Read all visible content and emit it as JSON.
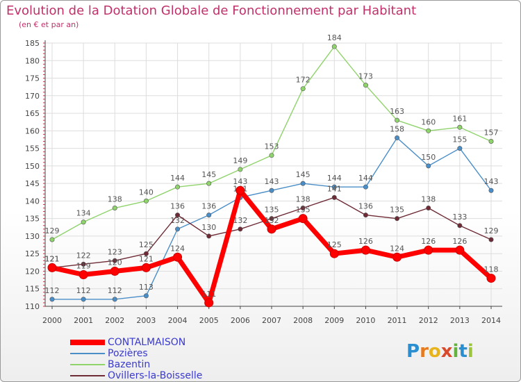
{
  "title": "Evolution de la Dotation Globale de Fonctionnement par Habitant",
  "subtitle": "(en € et par an)",
  "logo": {
    "letters": [
      "P",
      "r",
      "o",
      "x",
      "i",
      "t",
      "i"
    ],
    "colors": [
      "#2a8fd0",
      "#e87a1e",
      "#e8b41e",
      "#d94a2b",
      "#63b33e",
      "#2a8fd0",
      "#9bc43a"
    ]
  },
  "chart_data": {
    "type": "line",
    "x": [
      "2000",
      "2001",
      "2002",
      "2003",
      "2004",
      "2005",
      "2006",
      "2007",
      "2008",
      "2009",
      "2010",
      "2011",
      "2012",
      "2013",
      "2014"
    ],
    "ylim": [
      110,
      185
    ],
    "yticks": [
      "110",
      "115",
      "120",
      "125",
      "130",
      "135",
      "140",
      "145",
      "150",
      "155",
      "160",
      "165",
      "170",
      "175",
      "180",
      "185"
    ],
    "grid": true,
    "legend_position": "bottom-left",
    "series": [
      {
        "name": "Bazentin",
        "color": "#8fd36b",
        "values": [
          129,
          134,
          138,
          140,
          144,
          145,
          149,
          153,
          172,
          184,
          173,
          163,
          160,
          161,
          157
        ],
        "labels": [
          "129",
          "134",
          "138",
          "140",
          "144",
          "145",
          "149",
          "153",
          "172",
          "184",
          "173",
          "163",
          "160",
          "161",
          "157"
        ]
      },
      {
        "name": "Pozières",
        "color": "#4a8ec8",
        "values": [
          112,
          112,
          112,
          113,
          132,
          136,
          141,
          143,
          145,
          144,
          144,
          158,
          150,
          155,
          143
        ],
        "labels": [
          "112",
          "112",
          "112",
          "113",
          "132",
          "136",
          "141",
          "143",
          "145",
          "144",
          "144",
          "158",
          "150",
          "155",
          "143"
        ]
      },
      {
        "name": "Ovillers-la-Boisselle",
        "color": "#6e2a35",
        "values": [
          121,
          122,
          123,
          125,
          136,
          130,
          132,
          135,
          138,
          141,
          136,
          135,
          138,
          133,
          129
        ],
        "labels": [
          "121",
          "122",
          "123",
          "125",
          "136",
          "130",
          "132",
          "135",
          "138",
          "141",
          "136",
          "135",
          "138",
          "133",
          "129"
        ]
      },
      {
        "name": "CONTALMAISON",
        "color": "#ff0000",
        "values": [
          121,
          119,
          120,
          121,
          124,
          111,
          143,
          132,
          135,
          125,
          126,
          124,
          126,
          126,
          118
        ],
        "labels": [
          "121",
          "119",
          "120",
          "121",
          "124",
          "111",
          "143",
          "132",
          "135",
          "125",
          "126",
          "124",
          "126",
          "126",
          "118"
        ]
      }
    ],
    "legend_order": [
      "CONTALMAISON",
      "Pozières",
      "Bazentin",
      "Ovillers-la-Boisselle"
    ]
  }
}
